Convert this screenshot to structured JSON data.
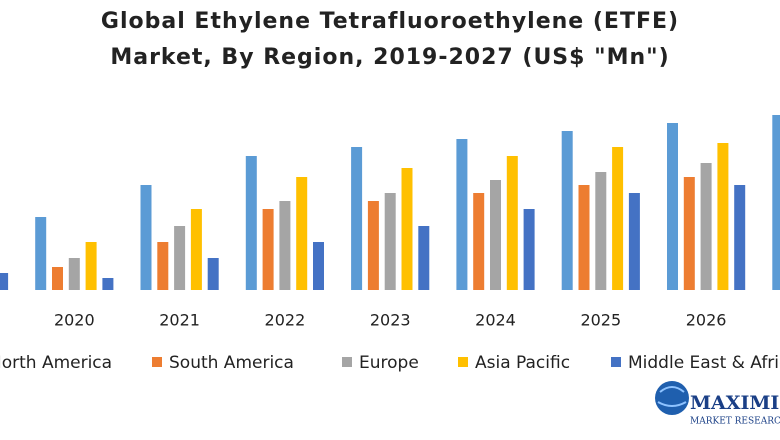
{
  "chart_data": {
    "type": "bar",
    "title": "Global Ethylene Tetrafluoroethylene (ETFE)",
    "subtitle": "Market, By Region, 2019-2027 (US$ \"Mn\")",
    "categories": [
      null,
      "2020",
      "2021",
      "2022",
      "2023",
      "2024",
      "2025",
      "2026",
      null
    ],
    "series": [
      {
        "name": "North America",
        "color": "#5b9bd5",
        "values": [
          null,
          73,
          105,
          134,
          143,
          151,
          159,
          167,
          175
        ]
      },
      {
        "name": "South America",
        "color": "#ed7d31",
        "values": [
          null,
          23,
          48,
          81,
          89,
          97,
          105,
          113,
          null
        ]
      },
      {
        "name": "Europe",
        "color": "#a5a5a5",
        "values": [
          null,
          32,
          64,
          89,
          97,
          110,
          118,
          127,
          null
        ]
      },
      {
        "name": "Asia Pacific",
        "color": "#ffc000",
        "values": [
          null,
          48,
          81,
          113,
          122,
          134,
          143,
          147,
          null
        ]
      },
      {
        "name": "Middle East & Africa",
        "color": "#4472c4",
        "values": [
          17,
          12,
          32,
          48,
          64,
          81,
          97,
          105,
          null
        ]
      }
    ],
    "ylim": [
      0,
      180
    ],
    "grid": false,
    "legend": "bottom"
  },
  "logo": {
    "name": "MAXIMIZE",
    "tagline": "MARKET RESEARCH"
  }
}
